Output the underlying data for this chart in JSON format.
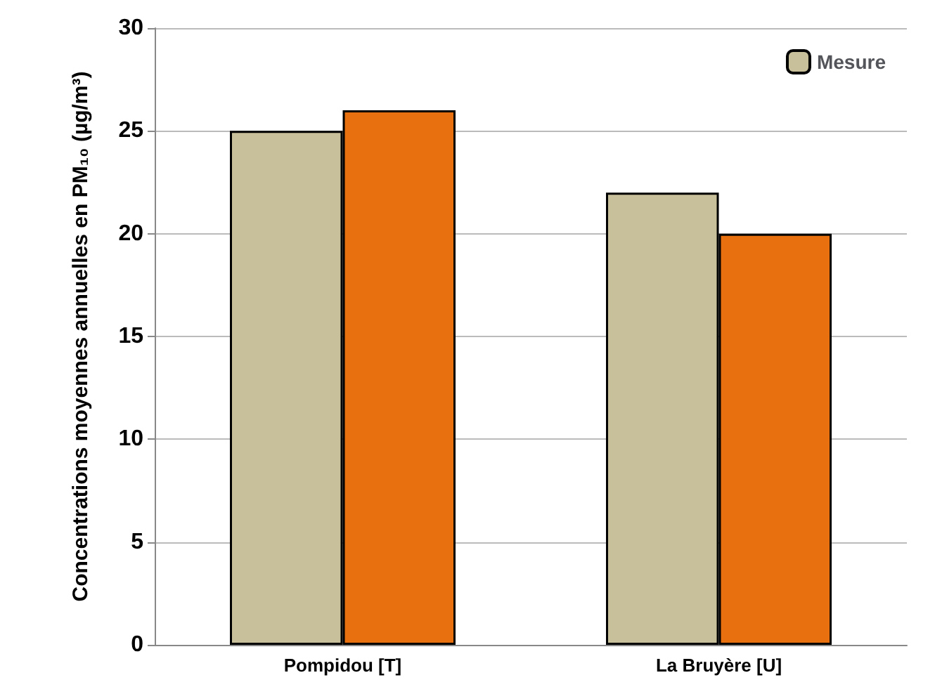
{
  "chart_data": {
    "type": "bar",
    "ylabel": "Concentrations moyennes annuelles en PM₁₀ (µg/m³)",
    "categories": [
      "Pompidou [T]",
      "La Bruyère [U]"
    ],
    "series": [
      {
        "name": "Mesure",
        "color": "#c8bf9b",
        "values": [
          25,
          22
        ]
      },
      {
        "color": "#e8700f",
        "values": [
          26,
          20
        ]
      }
    ],
    "ylim": [
      0,
      30
    ],
    "yticks": [
      0,
      5,
      10,
      15,
      20,
      25,
      30
    ],
    "grid": "y",
    "legend": "top right"
  }
}
